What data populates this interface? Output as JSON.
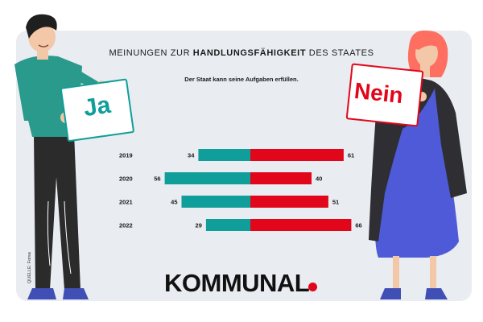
{
  "title": {
    "prefix": "MEINUNGEN ZUR ",
    "bold": "HANDLUNGSFÄHIGKEIT",
    "suffix": " DES STAATES"
  },
  "subtitle": "Der Staat kann seine Aufgaben erfüllen.",
  "signs": {
    "yes": "Ja",
    "no": "Nein"
  },
  "source": "QUELLE: Forsa",
  "logo": "KOMMUNAL",
  "colors": {
    "yes": "#0f9e99",
    "no": "#e2061b",
    "panel": "#e9ecf1",
    "sign_no_border": "#e2061b"
  },
  "chart_data": {
    "type": "bar",
    "orientation": "horizontal-diverging",
    "title": "Der Staat kann seine Aufgaben erfüllen.",
    "categories": [
      "2019",
      "2020",
      "2021",
      "2022"
    ],
    "series": [
      {
        "name": "Ja",
        "values": [
          34,
          56,
          45,
          29
        ]
      },
      {
        "name": "Nein",
        "values": [
          61,
          40,
          51,
          66
        ]
      }
    ],
    "xlabel": "",
    "ylabel": "",
    "unit": "%"
  }
}
